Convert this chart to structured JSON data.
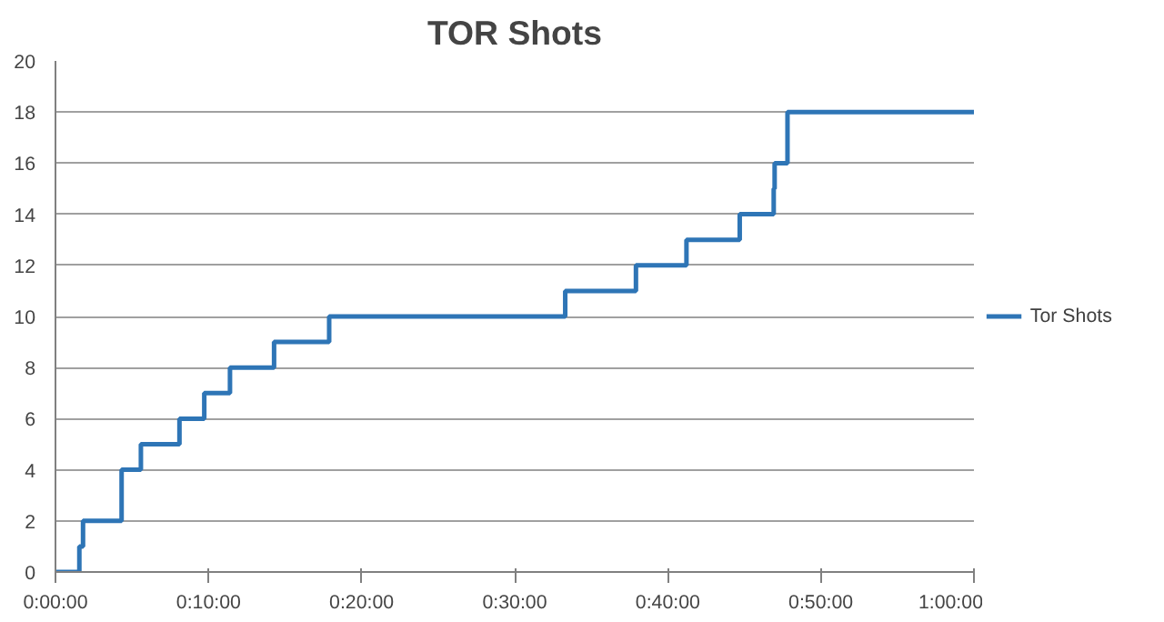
{
  "chart_data": {
    "type": "step",
    "title": "TOR Shots",
    "x": [
      0,
      0.026,
      0.03,
      0.072,
      0.093,
      0.135,
      0.162,
      0.19,
      0.238,
      0.298,
      0.555,
      0.632,
      0.687,
      0.745,
      0.782,
      0.783,
      0.797,
      1.0
    ],
    "series": [
      {
        "name": "Tor Shots",
        "color": "#2e75b6",
        "values": [
          0,
          1,
          2,
          4,
          5,
          6,
          7,
          8,
          9,
          10,
          11,
          12,
          13,
          14,
          15,
          16,
          18,
          18
        ]
      }
    ],
    "xlim": [
      0,
      1
    ],
    "xticks": [
      {
        "value": 0,
        "label": "0:00:00"
      },
      {
        "value": 0.16667,
        "label": "0:10:00"
      },
      {
        "value": 0.33333,
        "label": "0:20:00"
      },
      {
        "value": 0.5,
        "label": "0:30:00"
      },
      {
        "value": 0.66667,
        "label": "0:40:00"
      },
      {
        "value": 0.83333,
        "label": "0:50:00"
      },
      {
        "value": 1,
        "label": "1:00:00"
      }
    ],
    "ylim": [
      0,
      20
    ],
    "yticks": [
      0,
      2,
      4,
      6,
      8,
      10,
      12,
      14,
      16,
      18,
      20
    ],
    "grid": "y",
    "legend": "right",
    "line_style": "solid",
    "marker": "none"
  }
}
